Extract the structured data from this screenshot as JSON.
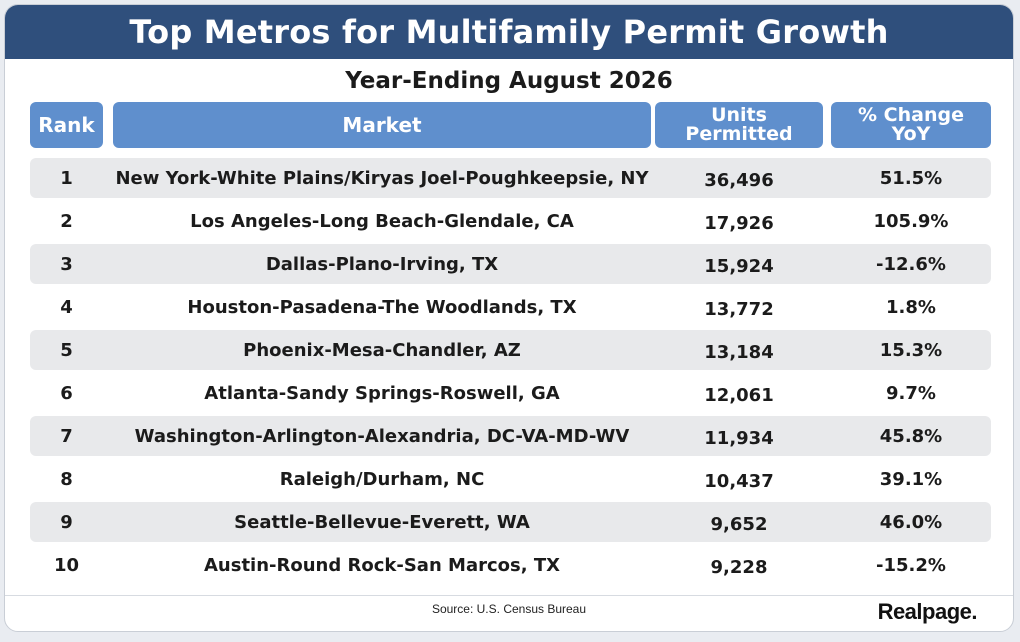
{
  "title": "Top Metros for Multifamily Permit Growth",
  "subtitle": "Year-Ending August 2026",
  "headers": {
    "rank": "Rank",
    "market": "Market",
    "units": "Units\nPermitted",
    "change": "% Change\nYoY"
  },
  "colors": {
    "title_bar": "#2f4f7c",
    "header_cells": "#5f8fcd",
    "row_alt": "#e8e9eb"
  },
  "chart_data": {
    "type": "table",
    "title": "Top Metros for Multifamily Permit Growth",
    "subtitle": "Year-Ending August 2026",
    "columns": [
      "Rank",
      "Market",
      "Units Permitted",
      "% Change YoY"
    ],
    "rows": [
      {
        "rank": "1",
        "market": "New York-White Plains/Kiryas Joel-Poughkeepsie, NY",
        "units": "36,496",
        "change": "51.5%"
      },
      {
        "rank": "2",
        "market": "Los Angeles-Long Beach-Glendale, CA",
        "units": "17,926",
        "change": "105.9%"
      },
      {
        "rank": "3",
        "market": "Dallas-Plano-Irving, TX",
        "units": "15,924",
        "change": "-12.6%"
      },
      {
        "rank": "4",
        "market": "Houston-Pasadena-The Woodlands, TX",
        "units": "13,772",
        "change": "1.8%"
      },
      {
        "rank": "5",
        "market": "Phoenix-Mesa-Chandler, AZ",
        "units": "13,184",
        "change": "15.3%"
      },
      {
        "rank": "6",
        "market": "Atlanta-Sandy Springs-Roswell, GA",
        "units": "12,061",
        "change": "9.7%"
      },
      {
        "rank": "7",
        "market": "Washington-Arlington-Alexandria, DC-VA-MD-WV",
        "units": "11,934",
        "change": "45.8%"
      },
      {
        "rank": "8",
        "market": "Raleigh/Durham, NC",
        "units": "10,437",
        "change": "39.1%"
      },
      {
        "rank": "9",
        "market": "Seattle-Bellevue-Everett, WA",
        "units": "9,652",
        "change": "46.0%"
      },
      {
        "rank": "10",
        "market": "Austin-Round Rock-San Marcos, TX",
        "units": "9,228",
        "change": "-15.2%"
      }
    ]
  },
  "footer": {
    "source": "Source: U.S. Census Bureau",
    "logo": "Realpage."
  }
}
